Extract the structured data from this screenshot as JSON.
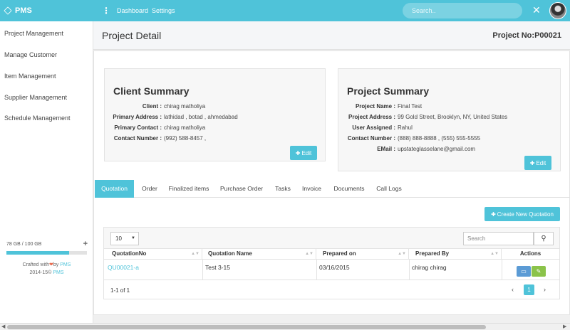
{
  "topbar": {
    "brand": "PMS",
    "nav": [
      "Dashboard",
      "Settings"
    ],
    "search_placeholder": "Search.."
  },
  "sidebar": {
    "items": [
      "Project Management",
      "Manage Customer",
      "Item Management",
      "Supplier Management",
      "Schedule Management"
    ],
    "storage_label": "78 GB / 100 GB",
    "storage_fraction": 0.78,
    "crafted_prefix": "Crafted with",
    "crafted_by": "by",
    "crafted_brand": "PMS",
    "copyright_prefix": "2014-15©",
    "copyright_brand": "PMS"
  },
  "header": {
    "title": "Project Detail",
    "project_no": "Project No:P00021"
  },
  "client_summary": {
    "title": "Client Summary",
    "fields": [
      {
        "label": "Client :",
        "value": "chirag matholiya"
      },
      {
        "label": "Primary Address :",
        "value": "lathidad , botad , ahmedabad"
      },
      {
        "label": "Primary Contact :",
        "value": "chirag matholiya"
      },
      {
        "label": "Contact Number :",
        "value": "(992) 588-8457 ,"
      }
    ],
    "edit_label": "Edit"
  },
  "project_summary": {
    "title": "Project Summary",
    "fields": [
      {
        "label": "Project Name :",
        "value": "Final Test"
      },
      {
        "label": "Project Address :",
        "value": "99 Gold Street, Brooklyn, NY, United States"
      },
      {
        "label": "User Assigned :",
        "value": "Rahul"
      },
      {
        "label": "Contact Number :",
        "value": "(888) 888-8888 , (555) 555-5555"
      },
      {
        "label": "EMail :",
        "value": "upstateglasselane@gmail.com"
      }
    ],
    "edit_label": "Edit"
  },
  "tabs": [
    "Quotation",
    "Order",
    "Finalized items",
    "Purchase Order",
    "Tasks",
    "Invoice",
    "Documents",
    "Call Logs"
  ],
  "active_tab": "Quotation",
  "quotation": {
    "create_label": "Create New Quotation",
    "page_size": "10",
    "search_placeholder": "Search",
    "columns": [
      "QuotationNo",
      "Quotation Name",
      "Prepared on",
      "Prepared By",
      "Actions"
    ],
    "rows": [
      {
        "no": "QU00021-a",
        "name": "Test 3-15",
        "prepared_on": "03/16/2015",
        "prepared_by": "chirag chirag"
      }
    ],
    "count_label": "1-1 of 1",
    "current_page": "1"
  },
  "colors": {
    "accent": "#4fc3d9",
    "action_view": "#5b9bd5",
    "action_edit": "#8bc34a",
    "heart": "#e8674a"
  }
}
